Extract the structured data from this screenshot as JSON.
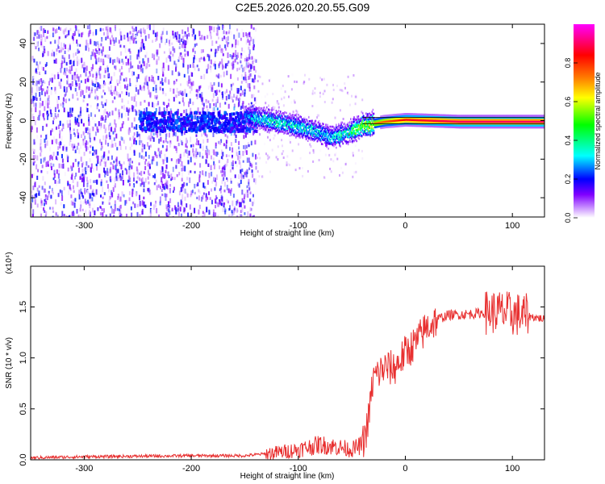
{
  "page_title": "C2E5.2026.020.20.55.G09",
  "chart_data": [
    {
      "type": "heatmap",
      "title": "C2E5.2026.020.20.55.G09",
      "xlabel": "Height of straight line (km)",
      "ylabel": "Frequency (Hz)",
      "xlim": [
        -350,
        130
      ],
      "ylim": [
        -50,
        50
      ],
      "x_ticks": [
        -300,
        -200,
        -100,
        0,
        100
      ],
      "x_tick_labels": [
        "-300",
        "-200",
        "-100",
        "0",
        "100"
      ],
      "y_ticks": [
        -40,
        -20,
        0,
        20,
        40
      ],
      "y_tick_labels": [
        "-40",
        "-20",
        "0",
        "20",
        "40"
      ],
      "colorbar": {
        "label": "Normalized spectral amplitude",
        "range": [
          0,
          1
        ],
        "ticks": [
          0.0,
          0.2,
          0.4,
          0.6,
          0.8
        ],
        "tick_labels": [
          "0.0",
          "0.2",
          "0.4",
          "0.6",
          "0.8"
        ],
        "colormap": [
          "#ffffff",
          "#c080ff",
          "#8000ff",
          "#0000ff",
          "#00ffff",
          "#00ff00",
          "#ffff00",
          "#ff8000",
          "#ff0000",
          "#ff00ff"
        ]
      },
      "signal_track": [
        {
          "x": -150,
          "freq": 3,
          "amp": 0.3
        },
        {
          "x": -130,
          "freq": 1,
          "amp": 0.45
        },
        {
          "x": -110,
          "freq": -1,
          "amp": 0.4
        },
        {
          "x": -90,
          "freq": -4,
          "amp": 0.4
        },
        {
          "x": -70,
          "freq": -8,
          "amp": 0.35
        },
        {
          "x": -55,
          "freq": -6,
          "amp": 0.45
        },
        {
          "x": -40,
          "freq": -2,
          "amp": 0.65
        },
        {
          "x": -20,
          "freq": 0,
          "amp": 0.75
        },
        {
          "x": 0,
          "freq": 1,
          "amp": 0.85
        },
        {
          "x": 50,
          "freq": 0,
          "amp": 0.9
        },
        {
          "x": 130,
          "freq": 0,
          "amp": 0.9
        }
      ]
    },
    {
      "type": "line",
      "xlabel": "Height of straight line (km)",
      "ylabel": "SNR (10 * v/v)",
      "scale_label": "(x10⁴)",
      "xlim": [
        -350,
        130
      ],
      "ylim": [
        0,
        1.9
      ],
      "x_ticks": [
        -300,
        -200,
        -100,
        0,
        100
      ],
      "x_tick_labels": [
        "-300",
        "-200",
        "-100",
        "0",
        "100"
      ],
      "y_ticks": [
        0.0,
        0.5,
        1.0,
        1.5
      ],
      "y_tick_labels": [
        "0.0",
        "0.5",
        "1.0",
        "1.5"
      ],
      "line_color": "#e83030",
      "series": [
        {
          "name": "SNR",
          "x": [
            -350,
            -300,
            -200,
            -150,
            -120,
            -100,
            -80,
            -60,
            -50,
            -40,
            -35,
            -30,
            -20,
            -10,
            0,
            10,
            20,
            30,
            40,
            60,
            80,
            90,
            100,
            110,
            130
          ],
          "y": [
            0.02,
            0.03,
            0.04,
            0.04,
            0.07,
            0.1,
            0.15,
            0.12,
            0.1,
            0.15,
            0.35,
            0.8,
            0.9,
            0.9,
            1.05,
            1.15,
            1.3,
            1.38,
            1.42,
            1.43,
            1.45,
            1.45,
            1.43,
            1.42,
            1.38
          ]
        }
      ]
    }
  ]
}
